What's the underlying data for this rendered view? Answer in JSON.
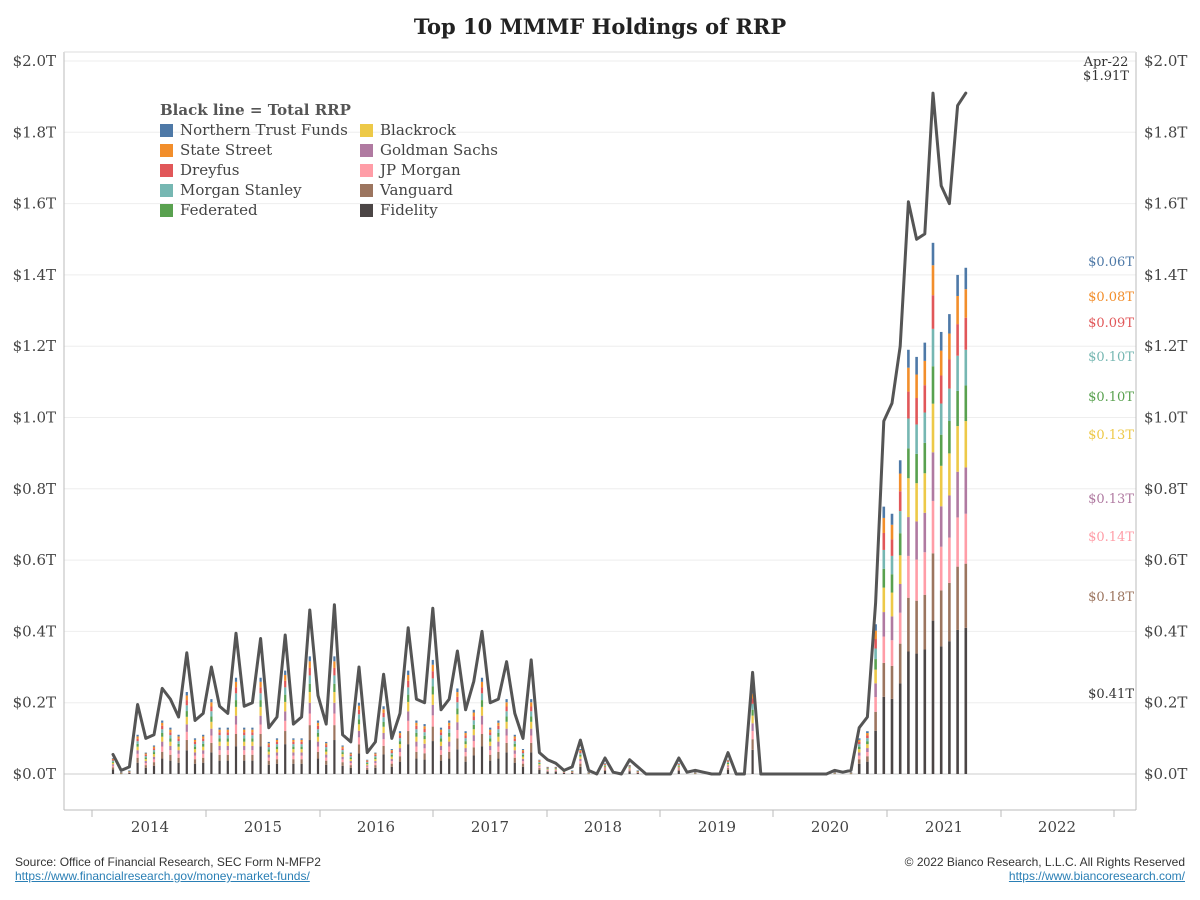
{
  "title": "Top 10 MMMF Holdings of RRP",
  "source_line": "Source: Office of Financial Research, SEC Form N-MFP2",
  "source_link": "https://www.financialresearch.gov/money-market-funds/",
  "copyright_line": "© 2022 Bianco Research, L.L.C. All Rights Reserved",
  "copyright_link": "https://www.biancoresearch.com/",
  "colors": {
    "total_line": "#555555",
    "axis": "#bbbbbb",
    "grid": "#eeeeee",
    "tick_text": "#444444"
  },
  "chart_data": {
    "type": "bar",
    "title": "Top 10 MMMF Holdings of RRP",
    "stacked": true,
    "legend_title": "Black line = Total RRP",
    "legend_placement": "top-left",
    "y_tick_labels": [
      "$0.0T",
      "$0.2T",
      "$0.4T",
      "$0.6T",
      "$0.8T",
      "$1.0T",
      "$1.2T",
      "$1.4T",
      "$1.6T",
      "$1.8T",
      "$2.0T"
    ],
    "y_tick_values": [
      0,
      0.2,
      0.4,
      0.6,
      0.8,
      1.0,
      1.2,
      1.4,
      1.6,
      1.8,
      2.0
    ],
    "ylim": [
      0,
      2.0
    ],
    "x_tick_labels": [
      "2014",
      "2015",
      "2016",
      "2017",
      "2018",
      "2019",
      "2020",
      "2021",
      "2022"
    ],
    "x_start": "2013-09",
    "x_end": "2022-04",
    "series": [
      {
        "name": "Northern Trust Funds",
        "color": "#4e79a7",
        "latest_label": "$0.06T"
      },
      {
        "name": "State Street",
        "color": "#f28e2b",
        "latest_label": "$0.08T"
      },
      {
        "name": "Dreyfus",
        "color": "#e15759",
        "latest_label": "$0.09T"
      },
      {
        "name": "Morgan Stanley",
        "color": "#76b7b2",
        "latest_label": "$0.10T"
      },
      {
        "name": "Federated",
        "color": "#59a14f",
        "latest_label": "$0.10T"
      },
      {
        "name": "Blackrock",
        "color": "#edc948",
        "latest_label": "$0.13T"
      },
      {
        "name": "Goldman Sachs",
        "color": "#b07aa1",
        "latest_label": "$0.13T"
      },
      {
        "name": "JP Morgan",
        "color": "#ff9da7",
        "latest_label": "$0.14T"
      },
      {
        "name": "Vanguard",
        "color": "#9c755f",
        "latest_label": "$0.18T"
      },
      {
        "name": "Fidelity",
        "color": "#4b4545",
        "latest_label": "$0.41T"
      }
    ],
    "stack_order_bottom_to_top": [
      "Fidelity",
      "Vanguard",
      "JP Morgan",
      "Goldman Sachs",
      "Blackrock",
      "Federated",
      "Morgan Stanley",
      "Dreyfus",
      "State Street",
      "Northern Trust Funds"
    ],
    "latest_values": [
      0.06,
      0.08,
      0.09,
      0.1,
      0.1,
      0.13,
      0.13,
      0.14,
      0.18,
      0.41
    ],
    "total_rrp_annotation": {
      "date": "Apr-22",
      "value_label": "$1.91T",
      "value": 1.91
    },
    "total_rrp": [
      0.055,
      0.01,
      0.02,
      0.195,
      0.1,
      0.11,
      0.24,
      0.21,
      0.16,
      0.34,
      0.15,
      0.17,
      0.3,
      0.19,
      0.17,
      0.395,
      0.19,
      0.2,
      0.38,
      0.13,
      0.16,
      0.39,
      0.14,
      0.16,
      0.46,
      0.22,
      0.14,
      0.475,
      0.11,
      0.09,
      0.3,
      0.06,
      0.09,
      0.28,
      0.1,
      0.17,
      0.41,
      0.21,
      0.2,
      0.465,
      0.18,
      0.21,
      0.345,
      0.18,
      0.26,
      0.4,
      0.2,
      0.21,
      0.315,
      0.17,
      0.1,
      0.32,
      0.06,
      0.04,
      0.03,
      0.01,
      0.02,
      0.095,
      0.01,
      0.0,
      0.045,
      0.005,
      0.0,
      0.04,
      0.02,
      0.0,
      0.0,
      0.0,
      0.0,
      0.045,
      0.005,
      0.01,
      0.005,
      0.0,
      0.0,
      0.06,
      0.0,
      0.0,
      0.285,
      0.0,
      0.0,
      0.0,
      0.0,
      0.0,
      0.0,
      0.0,
      0.0,
      0.0,
      0.01,
      0.005,
      0.01,
      0.13,
      0.16,
      0.48,
      0.99,
      1.04,
      1.2,
      1.605,
      1.5,
      1.515,
      1.91,
      1.65,
      1.6,
      1.875,
      1.91
    ],
    "top10_total": [
      0.045,
      0.005,
      0.01,
      0.11,
      0.06,
      0.08,
      0.15,
      0.13,
      0.11,
      0.23,
      0.1,
      0.11,
      0.21,
      0.13,
      0.13,
      0.27,
      0.13,
      0.13,
      0.27,
      0.09,
      0.1,
      0.29,
      0.1,
      0.1,
      0.33,
      0.15,
      0.09,
      0.33,
      0.08,
      0.06,
      0.2,
      0.04,
      0.06,
      0.19,
      0.07,
      0.12,
      0.29,
      0.15,
      0.14,
      0.32,
      0.13,
      0.15,
      0.24,
      0.12,
      0.18,
      0.27,
      0.13,
      0.15,
      0.21,
      0.11,
      0.07,
      0.21,
      0.04,
      0.02,
      0.02,
      0.01,
      0.01,
      0.07,
      0.005,
      0.0,
      0.03,
      0.0,
      0.0,
      0.025,
      0.01,
      0.0,
      0.0,
      0.0,
      0.0,
      0.03,
      0.0,
      0.005,
      0.0,
      0.0,
      0.0,
      0.04,
      0.0,
      0.0,
      0.235,
      0.0,
      0.0,
      0.0,
      0.0,
      0.0,
      0.0,
      0.0,
      0.0,
      0.0,
      0.005,
      0.0,
      0.005,
      0.1,
      0.12,
      0.42,
      0.75,
      0.73,
      0.88,
      1.19,
      1.17,
      1.21,
      1.49,
      1.24,
      1.29,
      1.4,
      1.42
    ]
  }
}
